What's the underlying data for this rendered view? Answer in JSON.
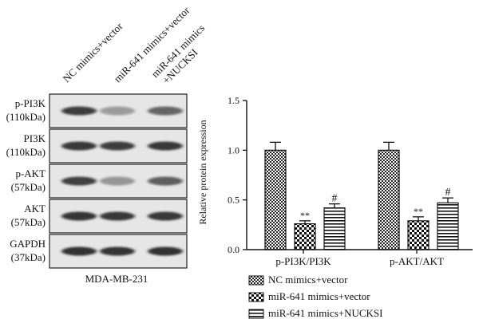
{
  "blot": {
    "lane_labels": [
      "NC mimics+vector",
      "miR-641 mimics+vector",
      "miR-641 mimics",
      "+NUCKSI"
    ],
    "rows": [
      {
        "name": "p-PI3K",
        "size": "(110kDa)",
        "intensity": [
          0.82,
          0.35,
          0.62
        ]
      },
      {
        "name": "PI3K",
        "size": "(110kDa)",
        "intensity": [
          0.85,
          0.82,
          0.84
        ]
      },
      {
        "name": "p-AKT",
        "size": "(57kDa)",
        "intensity": [
          0.8,
          0.38,
          0.65
        ]
      },
      {
        "name": "AKT",
        "size": "(57kDa)",
        "intensity": [
          0.86,
          0.84,
          0.85
        ]
      },
      {
        "name": "GAPDH",
        "size": "(37kDa)",
        "intensity": [
          0.87,
          0.86,
          0.87
        ]
      }
    ],
    "cell_line": "MDA-MB-231"
  },
  "chart_data": {
    "type": "bar",
    "categories": [
      "p-PI3K/PI3K",
      "p-AKT/AKT"
    ],
    "ylabel": "Relative protein expression",
    "ylim": [
      0,
      1.5
    ],
    "yticks": [
      "0.0",
      "0.5",
      "1.0",
      "1.5"
    ],
    "series": [
      {
        "name": "NC mimics+vector",
        "values": [
          1.0,
          1.0
        ],
        "errors": [
          0.08,
          0.08
        ],
        "pattern": "checker-fine",
        "marks": [
          "",
          ""
        ]
      },
      {
        "name": "miR-641 mimics+vector",
        "values": [
          0.26,
          0.29
        ],
        "errors": [
          0.03,
          0.04
        ],
        "pattern": "checker-bold",
        "marks": [
          "**",
          "**"
        ]
      },
      {
        "name": "miR-641 mimics+NUCKSI",
        "values": [
          0.42,
          0.47
        ],
        "errors": [
          0.04,
          0.05
        ],
        "pattern": "hstripes",
        "marks": [
          "#",
          "#"
        ]
      }
    ],
    "legend_position": "bottom"
  }
}
